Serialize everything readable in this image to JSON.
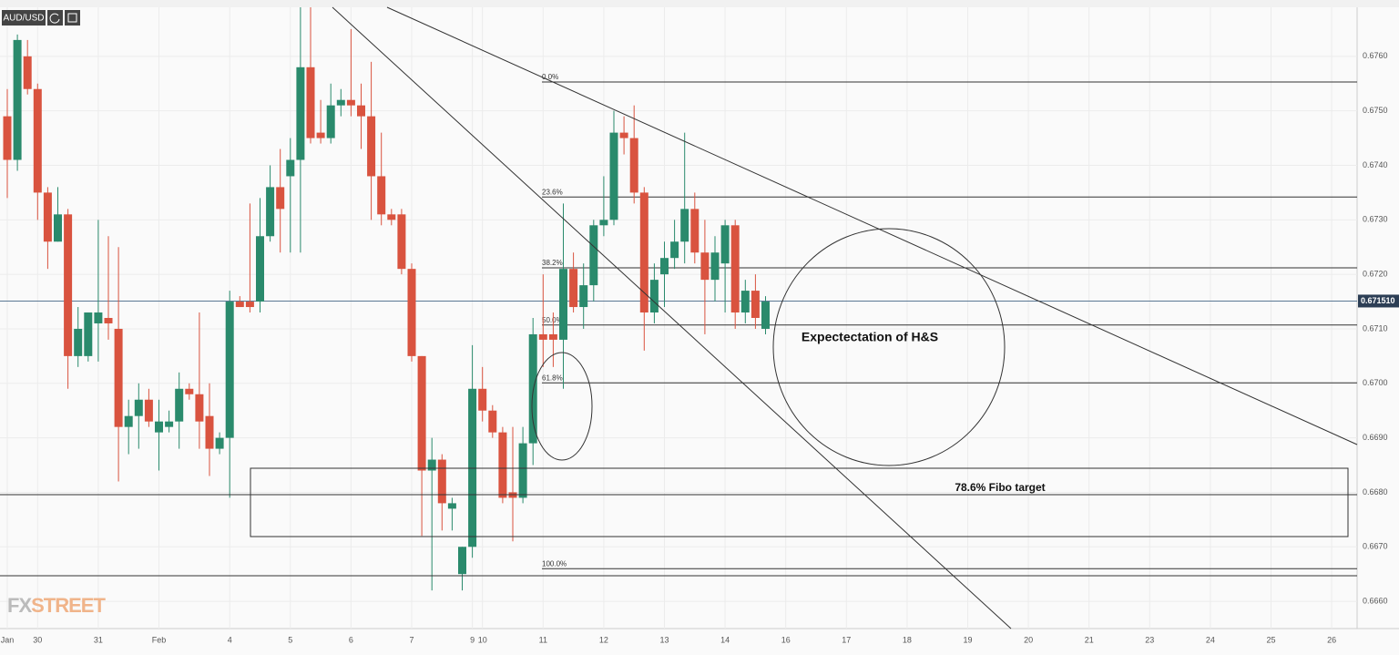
{
  "chart_data": {
    "type": "candlestick",
    "symbol": "AUD/USD",
    "watermark": [
      "FX",
      "STREET"
    ],
    "categories": [
      "Jan",
      null,
      null,
      "30",
      null,
      null,
      null,
      null,
      null,
      "31",
      null,
      null,
      null,
      null,
      null,
      "Feb",
      null,
      null,
      null,
      null,
      null,
      null,
      "4",
      null,
      null,
      null,
      null,
      null,
      "5",
      null,
      null,
      null,
      null,
      null,
      "6",
      null,
      null,
      null,
      null,
      null,
      "7",
      null,
      null,
      null,
      null,
      null,
      "9",
      "10",
      null,
      null,
      null,
      null,
      null,
      "11",
      null,
      null,
      null,
      null,
      null,
      "12",
      null,
      null,
      null,
      null,
      null,
      "13",
      null,
      null,
      null,
      null,
      null,
      "14",
      null,
      null,
      null,
      null,
      null,
      "16",
      null,
      null,
      null,
      null,
      null,
      "17",
      null,
      null,
      null,
      null,
      null,
      "18",
      null,
      null,
      null,
      null,
      null,
      "19",
      null,
      null,
      null,
      null,
      null,
      "20",
      null,
      null,
      null,
      null,
      null,
      "21",
      null,
      null,
      null,
      null,
      null,
      "23",
      null,
      null,
      null,
      null,
      null,
      "24",
      null,
      null,
      null,
      null,
      null,
      "25",
      null,
      null,
      null,
      null,
      null,
      "26",
      null,
      null
    ],
    "ohlc": [
      [
        0.6749,
        0.6754,
        0.6734,
        0.6741
      ],
      [
        0.6741,
        0.6764,
        0.6739,
        0.6763
      ],
      [
        0.676,
        0.6763,
        0.6753,
        0.6754
      ],
      [
        0.6754,
        0.6755,
        0.673,
        0.6735
      ],
      [
        0.6735,
        0.6736,
        0.6721,
        0.6726
      ],
      [
        0.6726,
        0.6736,
        0.6726,
        0.6731
      ],
      [
        0.6731,
        0.6732,
        0.6699,
        0.6705
      ],
      [
        0.6705,
        0.6714,
        0.6703,
        0.671
      ],
      [
        0.6705,
        0.6713,
        0.6704,
        0.6713
      ],
      [
        0.6711,
        0.673,
        0.6704,
        0.6713
      ],
      [
        0.6712,
        0.6727,
        0.6708,
        0.6711
      ],
      [
        0.671,
        0.6725,
        0.6682,
        0.6692
      ],
      [
        0.6692,
        0.6697,
        0.6687,
        0.6694
      ],
      [
        0.6694,
        0.67,
        0.6688,
        0.6697
      ],
      [
        0.6697,
        0.6699,
        0.6692,
        0.6693
      ],
      [
        0.6691,
        0.6697,
        0.6684,
        0.6693
      ],
      [
        0.6692,
        0.6695,
        0.6691,
        0.6693
      ],
      [
        0.6693,
        0.6702,
        0.6688,
        0.6699
      ],
      [
        0.6699,
        0.67,
        0.6697,
        0.6698
      ],
      [
        0.6698,
        0.6713,
        0.6688,
        0.6693
      ],
      [
        0.6694,
        0.67,
        0.6683,
        0.6688
      ],
      [
        0.6688,
        0.6691,
        0.6687,
        0.669
      ],
      [
        0.669,
        0.6717,
        0.6679,
        0.6715
      ],
      [
        0.6715,
        0.6716,
        0.6714,
        0.6714
      ],
      [
        0.6715,
        0.6733,
        0.6713,
        0.6714
      ],
      [
        0.6715,
        0.6734,
        0.6713,
        0.6727
      ],
      [
        0.6727,
        0.674,
        0.6726,
        0.6736
      ],
      [
        0.6736,
        0.6743,
        0.6724,
        0.6732
      ],
      [
        0.6738,
        0.6745,
        0.6724,
        0.6741
      ],
      [
        0.6741,
        0.6769,
        0.6724,
        0.6758
      ],
      [
        0.6758,
        0.6769,
        0.6744,
        0.6745
      ],
      [
        0.6746,
        0.6752,
        0.6744,
        0.6745
      ],
      [
        0.6745,
        0.6755,
        0.6744,
        0.6751
      ],
      [
        0.6751,
        0.6754,
        0.6749,
        0.6752
      ],
      [
        0.6752,
        0.6765,
        0.6749,
        0.6751
      ],
      [
        0.6751,
        0.6755,
        0.6743,
        0.6749
      ],
      [
        0.6749,
        0.6759,
        0.673,
        0.6738
      ],
      [
        0.6738,
        0.6746,
        0.6729,
        0.6731
      ],
      [
        0.6731,
        0.6732,
        0.6729,
        0.673
      ],
      [
        0.6731,
        0.6732,
        0.672,
        0.6721
      ],
      [
        0.6721,
        0.6722,
        0.6704,
        0.6705
      ],
      [
        0.6705,
        0.6705,
        0.6672,
        0.6684
      ],
      [
        0.6684,
        0.669,
        0.6662,
        0.6686
      ],
      [
        0.6686,
        0.6687,
        0.6673,
        0.6678
      ],
      [
        0.6677,
        0.6679,
        0.6673,
        0.6678
      ],
      [
        0.6665,
        0.667,
        0.6662,
        0.667
      ],
      [
        0.667,
        0.6707,
        0.6668,
        0.6699
      ],
      [
        0.6699,
        0.6703,
        0.6693,
        0.6695
      ],
      [
        0.6695,
        0.6696,
        0.669,
        0.6691
      ],
      [
        0.6691,
        0.6692,
        0.6678,
        0.6679
      ],
      [
        0.668,
        0.6692,
        0.6671,
        0.6679
      ],
      [
        0.6679,
        0.6692,
        0.6678,
        0.6689
      ],
      [
        0.6689,
        0.6712,
        0.6685,
        0.6709
      ],
      [
        0.6709,
        0.672,
        0.6703,
        0.6708
      ],
      [
        0.6709,
        0.6713,
        0.6703,
        0.6708
      ],
      [
        0.6708,
        0.6733,
        0.6699,
        0.6721
      ],
      [
        0.6721,
        0.6724,
        0.6713,
        0.6714
      ],
      [
        0.6714,
        0.6722,
        0.671,
        0.6718
      ],
      [
        0.6718,
        0.673,
        0.6715,
        0.6729
      ],
      [
        0.6729,
        0.6738,
        0.6727,
        0.673
      ],
      [
        0.673,
        0.675,
        0.6729,
        0.6746
      ],
      [
        0.6746,
        0.6749,
        0.6742,
        0.6745
      ],
      [
        0.6745,
        0.6751,
        0.6733,
        0.6735
      ],
      [
        0.6735,
        0.6736,
        0.6706,
        0.6713
      ],
      [
        0.6713,
        0.6722,
        0.6711,
        0.6719
      ],
      [
        0.672,
        0.6726,
        0.6714,
        0.6723
      ],
      [
        0.6723,
        0.673,
        0.6721,
        0.6726
      ],
      [
        0.6726,
        0.6746,
        0.6722,
        0.6732
      ],
      [
        0.6732,
        0.6735,
        0.6722,
        0.6724
      ],
      [
        0.6724,
        0.673,
        0.6709,
        0.6719
      ],
      [
        0.6719,
        0.6727,
        0.6715,
        0.6724
      ],
      [
        0.6722,
        0.673,
        0.6713,
        0.6729
      ],
      [
        0.6729,
        0.673,
        0.671,
        0.6713
      ],
      [
        0.6713,
        0.6719,
        0.6711,
        0.6717
      ],
      [
        0.6717,
        0.672,
        0.671,
        0.6712
      ],
      [
        0.671,
        0.6716,
        0.6709,
        0.6715
      ],
      null,
      null,
      null,
      null,
      null,
      null,
      null,
      null,
      null,
      null,
      null,
      null,
      null,
      null,
      null,
      null,
      null,
      null,
      null,
      null,
      null,
      null,
      null,
      null,
      null,
      null,
      null,
      null,
      null,
      null,
      null,
      null,
      null,
      null,
      null,
      null,
      null,
      null,
      null,
      null,
      null,
      null,
      null,
      null,
      null,
      null,
      null,
      null,
      null,
      null,
      null,
      null,
      null,
      null,
      null,
      null,
      null,
      null
    ],
    "up_color": "#2a8a6c",
    "down_color": "#d9533f",
    "ylim": [
      0.6655,
      0.6769
    ],
    "yticks": [
      {
        "value": 0.666,
        "label": "0.6660"
      },
      {
        "value": 0.667,
        "label": "0.6670"
      },
      {
        "value": 0.668,
        "label": "0.6680"
      },
      {
        "value": 0.669,
        "label": "0.6690"
      },
      {
        "value": 0.67,
        "label": "0.6700"
      },
      {
        "value": 0.671,
        "label": "0.6710"
      },
      {
        "value": 0.672,
        "label": "0.6720"
      },
      {
        "value": 0.673,
        "label": "0.6730"
      },
      {
        "value": 0.674,
        "label": "0.6740"
      },
      {
        "value": 0.675,
        "label": "0.6750"
      },
      {
        "value": 0.676,
        "label": "0.6760"
      }
    ],
    "grid": true,
    "last_price": {
      "value": 0.67151,
      "label": "0.671510"
    },
    "fib_levels": [
      {
        "value": 0.67553,
        "label": "0.0%"
      },
      {
        "value": 0.67342,
        "label": "23.6%"
      },
      {
        "value": 0.67212,
        "label": "38.2%"
      },
      {
        "value": 0.67107,
        "label": "50.0%"
      },
      {
        "value": 0.67001,
        "label": "61.8%"
      },
      {
        "value": 0.6666,
        "label": "100.0%"
      }
    ],
    "annotations": [
      "Expectectation of H&S",
      "78.6% Fibo target"
    ]
  }
}
